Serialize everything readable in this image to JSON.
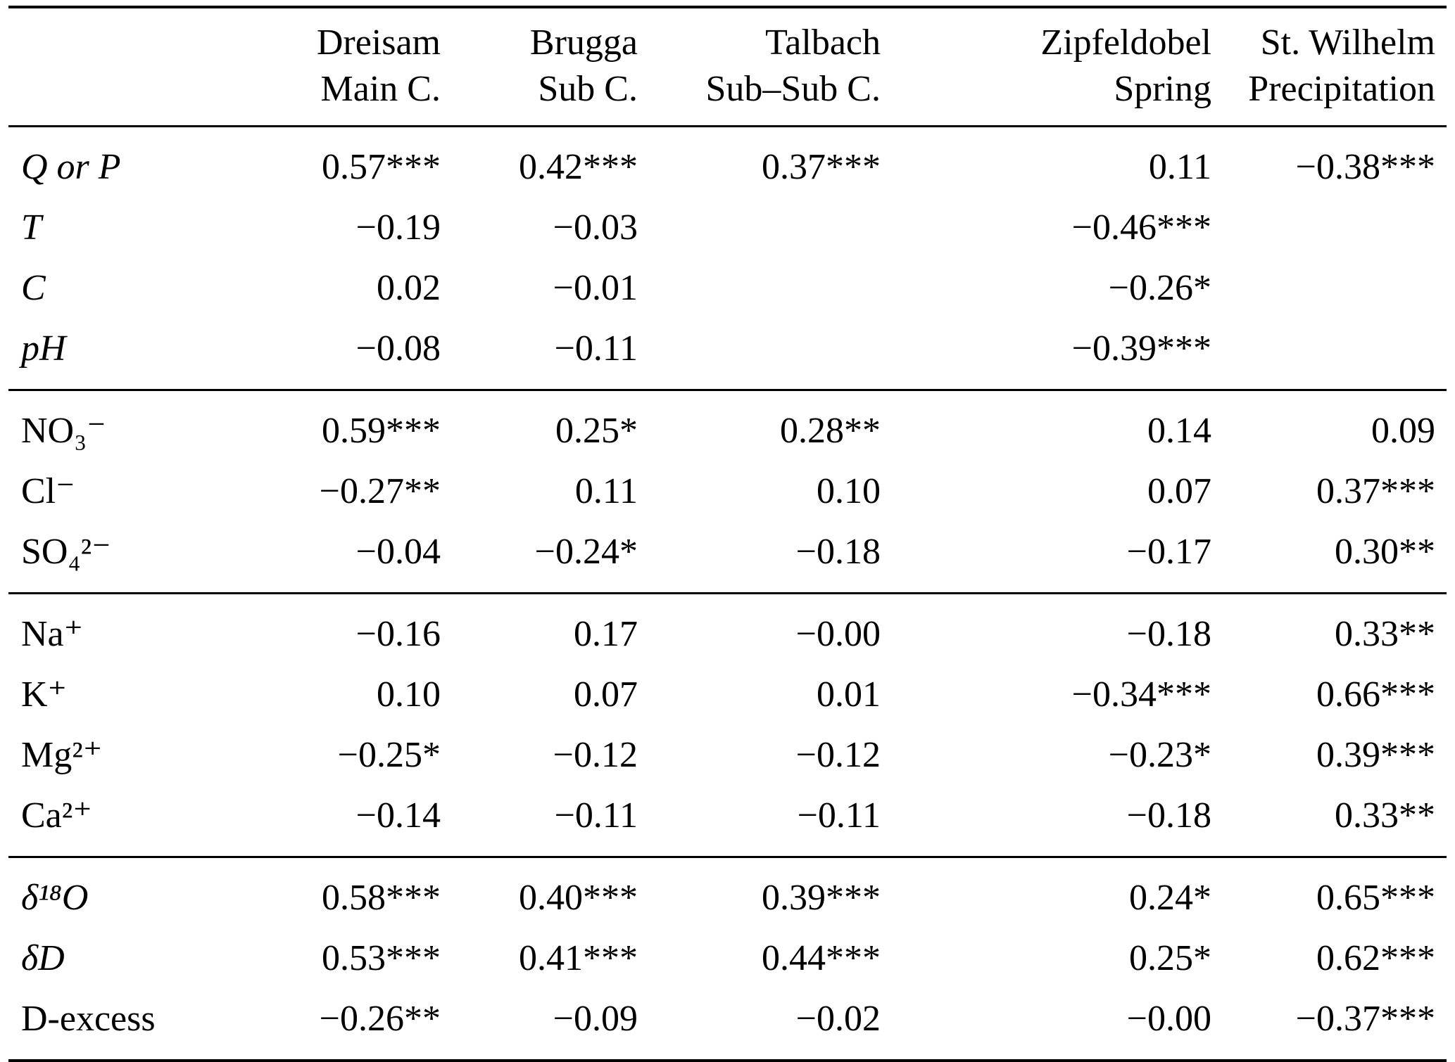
{
  "table": {
    "columns": [
      {
        "line1": "Dreisam",
        "line2": "Main C."
      },
      {
        "line1": "Brugga",
        "line2": "Sub C."
      },
      {
        "line1": "Talbach",
        "line2": "Sub–Sub C."
      },
      {
        "line1": "Zipfeldobel",
        "line2": "Spring"
      },
      {
        "line1": "St. Wilhelm",
        "line2": "Precipitation"
      }
    ],
    "groups": [
      {
        "rows": [
          {
            "label": "Q or P",
            "italic": true,
            "values": [
              "0.57***",
              "0.42***",
              "0.37***",
              "0.11",
              "−0.38***"
            ]
          },
          {
            "label": "T",
            "italic": true,
            "values": [
              "−0.19",
              "−0.03",
              "",
              "−0.46***",
              ""
            ]
          },
          {
            "label": "C",
            "italic": true,
            "values": [
              "0.02",
              "−0.01",
              "",
              "−0.26*",
              ""
            ]
          },
          {
            "label": "pH",
            "italic": true,
            "values": [
              "−0.08",
              "−0.11",
              "",
              "−0.39***",
              ""
            ]
          }
        ]
      },
      {
        "rows": [
          {
            "label": "NO₃⁻",
            "italic": false,
            "values": [
              "0.59***",
              "0.25*",
              "0.28**",
              "0.14",
              "0.09"
            ]
          },
          {
            "label": "Cl⁻",
            "italic": false,
            "values": [
              "−0.27**",
              "0.11",
              "0.10",
              "0.07",
              "0.37***"
            ]
          },
          {
            "label": "SO₄²⁻",
            "italic": false,
            "values": [
              "−0.04",
              "−0.24*",
              "−0.18",
              "−0.17",
              "0.30**"
            ]
          }
        ]
      },
      {
        "rows": [
          {
            "label": "Na⁺",
            "italic": false,
            "values": [
              "−0.16",
              "0.17",
              "−0.00",
              "−0.18",
              "0.33**"
            ]
          },
          {
            "label": "K⁺",
            "italic": false,
            "values": [
              "0.10",
              "0.07",
              "0.01",
              "−0.34***",
              "0.66***"
            ]
          },
          {
            "label": "Mg²⁺",
            "italic": false,
            "values": [
              "−0.25*",
              "−0.12",
              "−0.12",
              "−0.23*",
              "0.39***"
            ]
          },
          {
            "label": "Ca²⁺",
            "italic": false,
            "values": [
              "−0.14",
              "−0.11",
              "−0.11",
              "−0.18",
              "0.33**"
            ]
          }
        ]
      },
      {
        "rows": [
          {
            "label": "δ¹⁸O",
            "italic": true,
            "values": [
              "0.58***",
              "0.40***",
              "0.39***",
              "0.24*",
              "0.65***"
            ]
          },
          {
            "label": "δD",
            "italic": true,
            "values": [
              "0.53***",
              "0.41***",
              "0.44***",
              "0.25*",
              "0.62***"
            ]
          },
          {
            "label": "D-excess",
            "italic": false,
            "values": [
              "−0.26**",
              "−0.09",
              "−0.02",
              "−0.00",
              "−0.37***"
            ]
          }
        ]
      }
    ]
  }
}
